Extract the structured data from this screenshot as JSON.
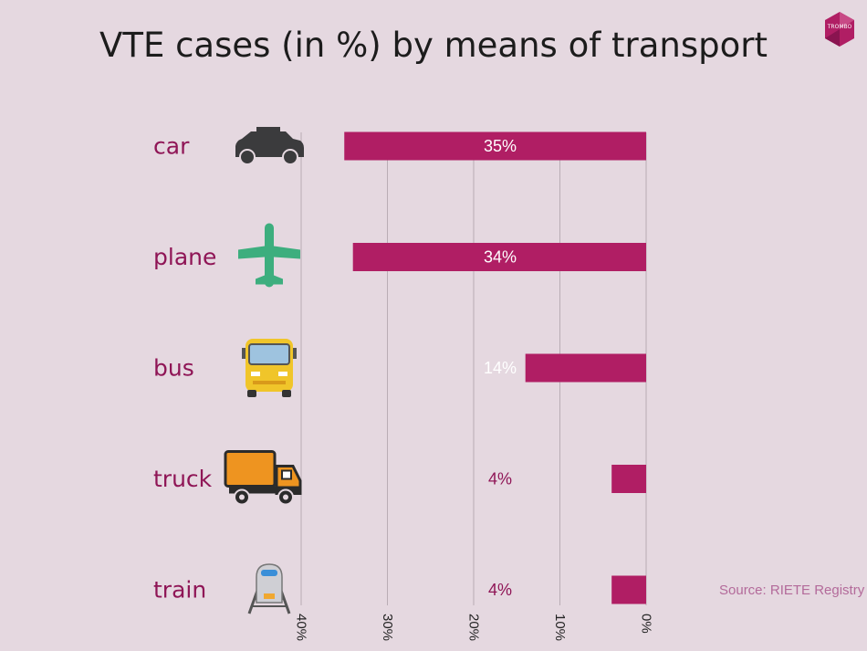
{
  "title": "VTE cases (in %) by means of transport",
  "logo_text": "TROMBO",
  "source": "Source: RIETE Registry",
  "colors": {
    "background": "#e5d8e0",
    "bar": "#b01e64",
    "label": "#8f1556",
    "grid": "#b9adb5",
    "title": "#1c1c1c"
  },
  "chart_data": {
    "type": "bar",
    "orientation": "horizontal",
    "axis_direction": "reversed",
    "categories": [
      "car",
      "plane",
      "bus",
      "truck",
      "train"
    ],
    "icons": [
      "car-icon",
      "plane-icon",
      "bus-icon",
      "truck-icon",
      "train-icon"
    ],
    "values": [
      35,
      34,
      14,
      4,
      4
    ],
    "value_labels": [
      "35%",
      "34%",
      "14%",
      "4%",
      "4%"
    ],
    "xlim": [
      0,
      40
    ],
    "ticks": [
      40,
      30,
      20,
      10,
      0
    ],
    "tick_labels": [
      "40%",
      "30%",
      "20%",
      "10%",
      "0%"
    ],
    "grid": true,
    "title": "VTE cases (in %) by means of transport"
  }
}
